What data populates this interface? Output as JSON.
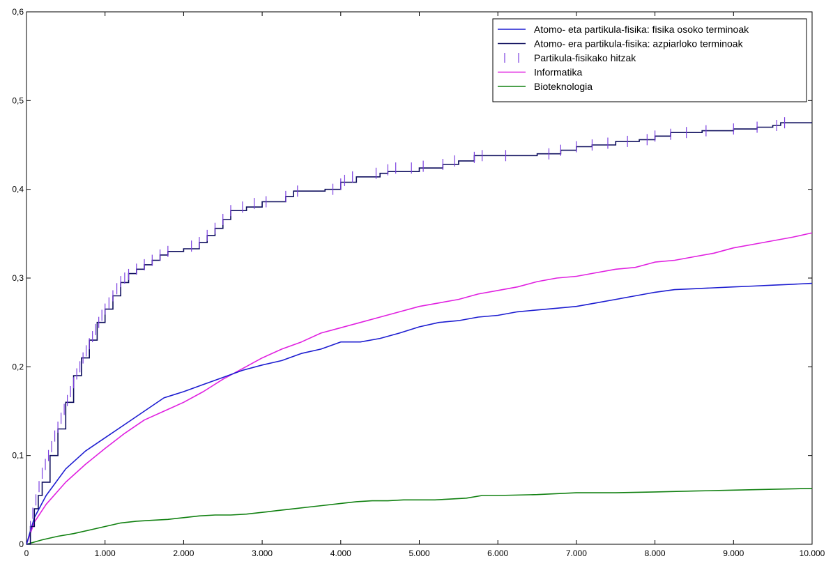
{
  "chart_data": {
    "type": "line",
    "title": "",
    "xlabel": "",
    "ylabel": "",
    "xlim": [
      0,
      10000
    ],
    "ylim": [
      0,
      0.6
    ],
    "x_ticks": [
      "0",
      "1.000",
      "2.000",
      "3.000",
      "4.000",
      "5.000",
      "6.000",
      "7.000",
      "8.000",
      "9.000",
      "10.000"
    ],
    "y_ticks": [
      "0",
      "0,1",
      "0,2",
      "0,3",
      "0,4",
      "0,5",
      "0,6"
    ],
    "grid": false,
    "legend_position": "top-right",
    "series": [
      {
        "name": "Atomo- eta partikula-fisika: fisika osoko terminoak",
        "color": "#1c1cd0",
        "style": "line",
        "points": [
          [
            0,
            0
          ],
          [
            100,
            0.03
          ],
          [
            250,
            0.055
          ],
          [
            500,
            0.085
          ],
          [
            750,
            0.105
          ],
          [
            1000,
            0.12
          ],
          [
            1250,
            0.135
          ],
          [
            1500,
            0.15
          ],
          [
            1750,
            0.165
          ],
          [
            2000,
            0.172
          ],
          [
            2250,
            0.18
          ],
          [
            2500,
            0.188
          ],
          [
            2750,
            0.196
          ],
          [
            3000,
            0.202
          ],
          [
            3250,
            0.207
          ],
          [
            3500,
            0.215
          ],
          [
            3750,
            0.22
          ],
          [
            4000,
            0.228
          ],
          [
            4250,
            0.228
          ],
          [
            4500,
            0.232
          ],
          [
            4750,
            0.238
          ],
          [
            5000,
            0.245
          ],
          [
            5250,
            0.25
          ],
          [
            5500,
            0.252
          ],
          [
            5750,
            0.256
          ],
          [
            6000,
            0.258
          ],
          [
            6250,
            0.262
          ],
          [
            6500,
            0.264
          ],
          [
            6750,
            0.266
          ],
          [
            7000,
            0.268
          ],
          [
            7250,
            0.272
          ],
          [
            7500,
            0.276
          ],
          [
            7750,
            0.28
          ],
          [
            8000,
            0.284
          ],
          [
            8250,
            0.287
          ],
          [
            8500,
            0.288
          ],
          [
            8750,
            0.289
          ],
          [
            9000,
            0.29
          ],
          [
            9250,
            0.291
          ],
          [
            9500,
            0.292
          ],
          [
            9750,
            0.293
          ],
          [
            10000,
            0.294
          ]
        ]
      },
      {
        "name": "Atomo- era partikula-fisika: azpiarloko terminoak",
        "color": "#0c0c5c",
        "style": "step",
        "points": [
          [
            0,
            0
          ],
          [
            50,
            0.02
          ],
          [
            100,
            0.04
          ],
          [
            150,
            0.055
          ],
          [
            200,
            0.07
          ],
          [
            300,
            0.1
          ],
          [
            400,
            0.13
          ],
          [
            500,
            0.16
          ],
          [
            600,
            0.19
          ],
          [
            700,
            0.21
          ],
          [
            800,
            0.23
          ],
          [
            900,
            0.25
          ],
          [
            1000,
            0.265
          ],
          [
            1100,
            0.28
          ],
          [
            1200,
            0.295
          ],
          [
            1300,
            0.305
          ],
          [
            1400,
            0.31
          ],
          [
            1500,
            0.315
          ],
          [
            1600,
            0.32
          ],
          [
            1700,
            0.326
          ],
          [
            1800,
            0.33
          ],
          [
            2000,
            0.333
          ],
          [
            2200,
            0.34
          ],
          [
            2300,
            0.348
          ],
          [
            2400,
            0.356
          ],
          [
            2500,
            0.366
          ],
          [
            2600,
            0.376
          ],
          [
            2800,
            0.38
          ],
          [
            3000,
            0.386
          ],
          [
            3300,
            0.392
          ],
          [
            3400,
            0.398
          ],
          [
            3800,
            0.4
          ],
          [
            4000,
            0.408
          ],
          [
            4200,
            0.414
          ],
          [
            4500,
            0.418
          ],
          [
            4600,
            0.42
          ],
          [
            5000,
            0.424
          ],
          [
            5300,
            0.428
          ],
          [
            5500,
            0.432
          ],
          [
            5700,
            0.438
          ],
          [
            6500,
            0.44
          ],
          [
            6800,
            0.444
          ],
          [
            7000,
            0.448
          ],
          [
            7200,
            0.45
          ],
          [
            7500,
            0.454
          ],
          [
            7800,
            0.456
          ],
          [
            8000,
            0.46
          ],
          [
            8200,
            0.464
          ],
          [
            8600,
            0.466
          ],
          [
            9000,
            0.468
          ],
          [
            9300,
            0.47
          ],
          [
            9500,
            0.472
          ],
          [
            9600,
            0.475
          ],
          [
            10000,
            0.475
          ]
        ]
      },
      {
        "name": "Partikula-fisikako  hitzak",
        "color": "#7b3fe0",
        "style": "ticks",
        "points": [
          [
            50,
            0.02
          ],
          [
            80,
            0.035
          ],
          [
            120,
            0.05
          ],
          [
            160,
            0.065
          ],
          [
            200,
            0.08
          ],
          [
            240,
            0.09
          ],
          [
            280,
            0.1
          ],
          [
            320,
            0.11
          ],
          [
            360,
            0.122
          ],
          [
            400,
            0.132
          ],
          [
            440,
            0.142
          ],
          [
            480,
            0.152
          ],
          [
            520,
            0.162
          ],
          [
            560,
            0.172
          ],
          [
            600,
            0.182
          ],
          [
            640,
            0.192
          ],
          [
            680,
            0.2
          ],
          [
            720,
            0.21
          ],
          [
            760,
            0.218
          ],
          [
            800,
            0.226
          ],
          [
            840,
            0.234
          ],
          [
            880,
            0.242
          ],
          [
            920,
            0.25
          ],
          [
            960,
            0.258
          ],
          [
            1000,
            0.265
          ],
          [
            1050,
            0.272
          ],
          [
            1100,
            0.28
          ],
          [
            1150,
            0.288
          ],
          [
            1200,
            0.296
          ],
          [
            1250,
            0.3
          ],
          [
            1300,
            0.304
          ],
          [
            1400,
            0.31
          ],
          [
            1500,
            0.315
          ],
          [
            1600,
            0.32
          ],
          [
            1700,
            0.326
          ],
          [
            1800,
            0.33
          ],
          [
            2100,
            0.336
          ],
          [
            2200,
            0.34
          ],
          [
            2300,
            0.348
          ],
          [
            2400,
            0.356
          ],
          [
            2500,
            0.366
          ],
          [
            2600,
            0.376
          ],
          [
            2750,
            0.38
          ],
          [
            2900,
            0.384
          ],
          [
            3050,
            0.386
          ],
          [
            3300,
            0.392
          ],
          [
            3450,
            0.398
          ],
          [
            3900,
            0.4
          ],
          [
            4000,
            0.406
          ],
          [
            4050,
            0.41
          ],
          [
            4150,
            0.414
          ],
          [
            4450,
            0.418
          ],
          [
            4600,
            0.422
          ],
          [
            4700,
            0.424
          ],
          [
            4900,
            0.424
          ],
          [
            5050,
            0.426
          ],
          [
            5300,
            0.428
          ],
          [
            5450,
            0.432
          ],
          [
            5700,
            0.436
          ],
          [
            5800,
            0.438
          ],
          [
            6100,
            0.438
          ],
          [
            6650,
            0.44
          ],
          [
            6800,
            0.444
          ],
          [
            7000,
            0.448
          ],
          [
            7200,
            0.45
          ],
          [
            7400,
            0.452
          ],
          [
            7650,
            0.454
          ],
          [
            7900,
            0.456
          ],
          [
            8000,
            0.46
          ],
          [
            8200,
            0.462
          ],
          [
            8400,
            0.464
          ],
          [
            8650,
            0.466
          ],
          [
            9000,
            0.468
          ],
          [
            9300,
            0.47
          ],
          [
            9550,
            0.472
          ],
          [
            9650,
            0.475
          ]
        ]
      },
      {
        "name": "Informatika",
        "color": "#e020e0",
        "style": "line",
        "points": [
          [
            0,
            0
          ],
          [
            100,
            0.025
          ],
          [
            250,
            0.045
          ],
          [
            500,
            0.07
          ],
          [
            750,
            0.09
          ],
          [
            1000,
            0.108
          ],
          [
            1250,
            0.125
          ],
          [
            1500,
            0.14
          ],
          [
            1750,
            0.15
          ],
          [
            2000,
            0.16
          ],
          [
            2250,
            0.172
          ],
          [
            2500,
            0.186
          ],
          [
            2750,
            0.198
          ],
          [
            3000,
            0.21
          ],
          [
            3250,
            0.22
          ],
          [
            3500,
            0.228
          ],
          [
            3750,
            0.238
          ],
          [
            4000,
            0.244
          ],
          [
            4250,
            0.25
          ],
          [
            4500,
            0.256
          ],
          [
            4750,
            0.262
          ],
          [
            5000,
            0.268
          ],
          [
            5250,
            0.272
          ],
          [
            5500,
            0.276
          ],
          [
            5750,
            0.282
          ],
          [
            6000,
            0.286
          ],
          [
            6250,
            0.29
          ],
          [
            6500,
            0.296
          ],
          [
            6750,
            0.3
          ],
          [
            7000,
            0.302
          ],
          [
            7250,
            0.306
          ],
          [
            7500,
            0.31
          ],
          [
            7750,
            0.312
          ],
          [
            8000,
            0.318
          ],
          [
            8250,
            0.32
          ],
          [
            8500,
            0.324
          ],
          [
            8750,
            0.328
          ],
          [
            9000,
            0.334
          ],
          [
            9250,
            0.338
          ],
          [
            9500,
            0.342
          ],
          [
            9750,
            0.346
          ],
          [
            10000,
            0.351
          ]
        ]
      },
      {
        "name": "Bioteknologia",
        "color": "#108010",
        "style": "line",
        "points": [
          [
            0,
            0
          ],
          [
            200,
            0.005
          ],
          [
            400,
            0.009
          ],
          [
            600,
            0.012
          ],
          [
            800,
            0.016
          ],
          [
            1000,
            0.02
          ],
          [
            1200,
            0.024
          ],
          [
            1400,
            0.026
          ],
          [
            1600,
            0.027
          ],
          [
            1800,
            0.028
          ],
          [
            2000,
            0.03
          ],
          [
            2200,
            0.032
          ],
          [
            2400,
            0.033
          ],
          [
            2600,
            0.033
          ],
          [
            2800,
            0.034
          ],
          [
            3000,
            0.036
          ],
          [
            3200,
            0.038
          ],
          [
            3400,
            0.04
          ],
          [
            3600,
            0.042
          ],
          [
            3800,
            0.044
          ],
          [
            4000,
            0.046
          ],
          [
            4200,
            0.048
          ],
          [
            4400,
            0.049
          ],
          [
            4600,
            0.049
          ],
          [
            4800,
            0.05
          ],
          [
            5000,
            0.05
          ],
          [
            5200,
            0.05
          ],
          [
            5400,
            0.051
          ],
          [
            5600,
            0.052
          ],
          [
            5800,
            0.055
          ],
          [
            6000,
            0.055
          ],
          [
            6500,
            0.056
          ],
          [
            7000,
            0.058
          ],
          [
            7500,
            0.058
          ],
          [
            8000,
            0.059
          ],
          [
            8500,
            0.06
          ],
          [
            9000,
            0.061
          ],
          [
            9500,
            0.062
          ],
          [
            10000,
            0.063
          ]
        ]
      }
    ]
  }
}
